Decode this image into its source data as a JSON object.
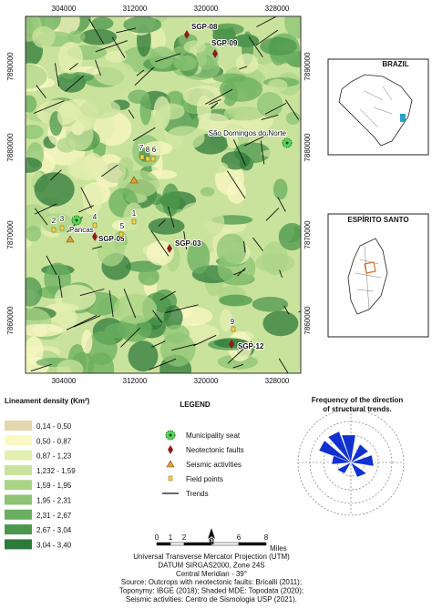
{
  "map": {
    "xticks": [
      "304000",
      "312000",
      "320000",
      "328000"
    ],
    "yticks": [
      "7890000",
      "7880000",
      "7870000",
      "7860000"
    ],
    "places": [
      {
        "label": "SGP-08",
        "kind": "fault"
      },
      {
        "label": "SGP-09",
        "kind": "fault"
      },
      {
        "label": "São Domingos do Norte",
        "kind": "seat"
      },
      {
        "label": "Pancas",
        "kind": "seat"
      },
      {
        "label": "SGP-05",
        "kind": "fault"
      },
      {
        "label": "SGP-03",
        "kind": "fault"
      },
      {
        "label": "SGP-12",
        "kind": "fault"
      },
      {
        "label": "1",
        "kind": "field"
      },
      {
        "label": "2",
        "kind": "field"
      },
      {
        "label": "3",
        "kind": "field"
      },
      {
        "label": "4",
        "kind": "field"
      },
      {
        "label": "5",
        "kind": "field"
      },
      {
        "label": "6",
        "kind": "field"
      },
      {
        "label": "7",
        "kind": "field"
      },
      {
        "label": "8",
        "kind": "field"
      },
      {
        "label": "9",
        "kind": "field"
      }
    ],
    "insets": [
      "BRAZIL",
      "ESPÍRITO SANTO"
    ]
  },
  "density_legend": {
    "title": "Lineament density (Km²)",
    "classes": [
      {
        "label": "0,14 - 0,50",
        "color": "#e6d6ae"
      },
      {
        "label": "0,50 - 0,87",
        "color": "#fbf8c4"
      },
      {
        "label": "0,87 - 1,23",
        "color": "#e4efb2"
      },
      {
        "label": "1,232 - 1,59",
        "color": "#c9e39c"
      },
      {
        "label": "1,59 - 1,95",
        "color": "#acd487"
      },
      {
        "label": "1,95 - 2,31",
        "color": "#8cc474"
      },
      {
        "label": "2,31 - 2,67",
        "color": "#6aaf5f"
      },
      {
        "label": "2,67 - 3,04",
        "color": "#4b974c"
      },
      {
        "label": "3,04 - 3,40",
        "color": "#2e7a3a"
      }
    ]
  },
  "legend": {
    "title": "LEGEND",
    "items": [
      {
        "label": "Municipality seat",
        "kind": "seat"
      },
      {
        "label": "Neotectonic faults",
        "kind": "fault"
      },
      {
        "label": "Seismic activities",
        "kind": "seismic"
      },
      {
        "label": "Field points",
        "kind": "field"
      },
      {
        "label": "Trends",
        "kind": "trend"
      }
    ]
  },
  "rose": {
    "title": [
      "Frequency of the direction",
      "of structural trends."
    ]
  },
  "scale": {
    "labels": [
      "0",
      "1",
      "2",
      "4",
      "6",
      "8"
    ],
    "unit": "Miles"
  },
  "north": "N",
  "credits": [
    "Universal Transverse Mercator Projection (UTM)",
    "DATUM SIRGAS2000, Zone 24S",
    "Central Meridian - 39°",
    "Source: Outcrops with neotectonic faults: Bricalli (2011);",
    "Toponymy: IBGE (2018); Shaded MDE: Topodata (2020);",
    "Seismic activities: Centro de Sismologia USP (2021)."
  ]
}
